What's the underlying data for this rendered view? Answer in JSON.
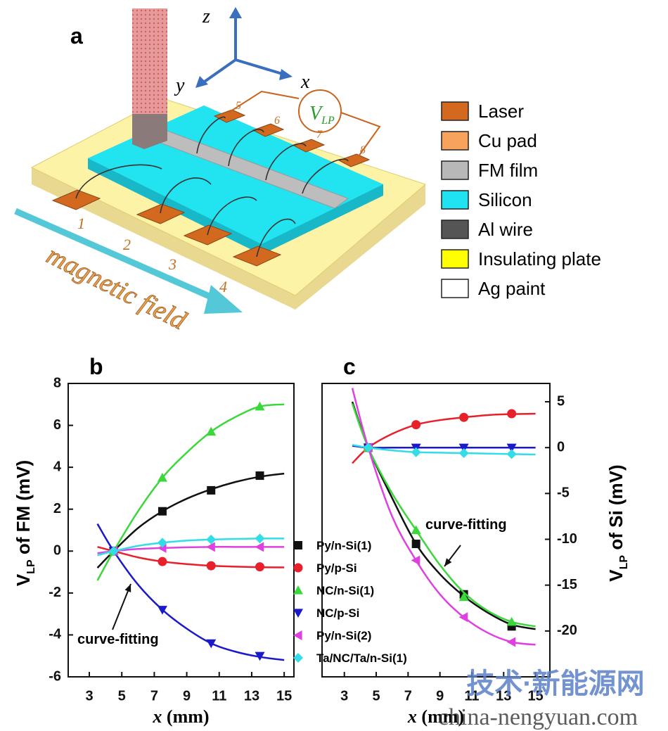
{
  "panel_a": {
    "label": "a",
    "axes": [
      "z",
      "y",
      "x"
    ],
    "pads": [
      "1",
      "2",
      "3",
      "4",
      "5",
      "6",
      "7",
      "8"
    ],
    "voltmeter": {
      "main": "V",
      "sub": "LP"
    },
    "field_label": "magnetic field",
    "legend": [
      {
        "label": "Laser",
        "color": "#d2691e"
      },
      {
        "label": "Cu pad",
        "color": "#f7a35c"
      },
      {
        "label": "FM film",
        "color": "#b8b8b8"
      },
      {
        "label": "Silicon",
        "color": "#1fe3f0"
      },
      {
        "label": "Al wire",
        "color": "#555555"
      },
      {
        "label": "Insulating plate",
        "color": "#ffff00"
      },
      {
        "label": "Ag paint",
        "color": "#ffffff"
      }
    ]
  },
  "chart_data": [
    {
      "type": "line",
      "panel": "b",
      "annotation": "curve-fitting",
      "xlabel": {
        "var": "x",
        "unit": "(mm)"
      },
      "ylabel": {
        "main": "V",
        "sub": "LP",
        "rest": " of FM (mV)"
      },
      "x": [
        4.5,
        7.5,
        10.5,
        13.5
      ],
      "fit_x": [
        3.5,
        4.5,
        6,
        7.5,
        9,
        10.5,
        12,
        13.5,
        15
      ],
      "xlim": [
        1.7,
        15.6
      ],
      "xticks": [
        3,
        5,
        7,
        9,
        11,
        13,
        15
      ],
      "ylim": [
        -6,
        8
      ],
      "yticks": [
        -6,
        -4,
        -2,
        0,
        2,
        4,
        6,
        8
      ],
      "series": [
        {
          "name": "Py/n-Si(1)",
          "color": "#111111",
          "marker": "square",
          "values": [
            0,
            1.9,
            2.9,
            3.6
          ],
          "fit": [
            -0.8,
            0,
            1.1,
            1.9,
            2.5,
            2.95,
            3.3,
            3.55,
            3.7
          ]
        },
        {
          "name": "Py/p-Si",
          "color": "#e8202a",
          "marker": "circle",
          "values": [
            0,
            -0.5,
            -0.7,
            -0.75
          ],
          "fit": [
            0.2,
            0,
            -0.3,
            -0.5,
            -0.62,
            -0.7,
            -0.74,
            -0.77,
            -0.78
          ]
        },
        {
          "name": "NC/n-Si(1)",
          "color": "#3ad83a",
          "marker": "triangle-up",
          "values": [
            0,
            3.5,
            5.7,
            6.9
          ],
          "fit": [
            -1.4,
            0,
            1.9,
            3.5,
            4.7,
            5.7,
            6.4,
            6.9,
            7.0
          ]
        },
        {
          "name": "NC/p-Si",
          "color": "#1a1acc",
          "marker": "triangle-down",
          "values": [
            0,
            -2.8,
            -4.4,
            -5.0
          ],
          "fit": [
            1.3,
            0,
            -1.6,
            -2.8,
            -3.7,
            -4.4,
            -4.8,
            -5.05,
            -5.2
          ]
        },
        {
          "name": "Py/n-Si(2)",
          "color": "#e040e0",
          "marker": "triangle-left",
          "values": [
            0,
            0.15,
            0.2,
            0.2
          ],
          "fit": [
            -0.1,
            0,
            0.1,
            0.15,
            0.18,
            0.2,
            0.2,
            0.2,
            0.2
          ]
        },
        {
          "name": "Ta/NC/Ta/n-Si(1)",
          "color": "#33dde8",
          "marker": "diamond",
          "values": [
            0,
            0.4,
            0.55,
            0.6
          ],
          "fit": [
            -0.2,
            0,
            0.25,
            0.4,
            0.5,
            0.55,
            0.58,
            0.6,
            0.6
          ]
        }
      ]
    },
    {
      "type": "line",
      "panel": "c",
      "annotation": "curve-fitting",
      "xlabel": {
        "var": "x",
        "unit": "(mm)"
      },
      "ylabel": {
        "main": "V",
        "sub": "LP",
        "rest": " of Si (mV)"
      },
      "x": [
        4.5,
        7.5,
        10.5,
        13.5
      ],
      "fit_x": [
        3.5,
        4.5,
        6,
        7.5,
        9,
        10.5,
        12,
        13.5,
        15
      ],
      "xlim": [
        1.6,
        15.9
      ],
      "xticks": [
        3,
        5,
        7,
        9,
        11,
        13,
        15
      ],
      "y2lim": [
        -25,
        7
      ],
      "y2ticks": [
        -20,
        -15,
        -10,
        -5,
        0,
        5
      ],
      "series": [
        {
          "color": "#111111",
          "marker": "square",
          "axis": "y2",
          "values": [
            0,
            -10.5,
            -16,
            -19.5
          ],
          "fit": [
            5,
            0,
            -5.5,
            -10.5,
            -13.8,
            -16.2,
            -18,
            -19.3,
            -19.8
          ]
        },
        {
          "color": "#e8202a",
          "marker": "circle",
          "axis": "y2",
          "values": [
            0,
            2.5,
            3.3,
            3.7
          ],
          "fit": [
            -1.7,
            0,
            1.5,
            2.5,
            3.0,
            3.3,
            3.55,
            3.65,
            3.7
          ]
        },
        {
          "color": "#3ad83a",
          "marker": "triangle-up",
          "axis": "y2",
          "values": [
            0,
            -9,
            -16.3,
            -19
          ],
          "fit": [
            4.8,
            0,
            -5,
            -9,
            -12.8,
            -15.8,
            -17.8,
            -19,
            -19.5
          ]
        },
        {
          "color": "#1a1acc",
          "marker": "triangle-down",
          "axis": "y2",
          "values": [
            0,
            0,
            0,
            0
          ],
          "fit": [
            0.2,
            0,
            0,
            0,
            0,
            0,
            0,
            0,
            0
          ]
        },
        {
          "color": "#e040e0",
          "marker": "triangle-left",
          "axis": "y2",
          "values": [
            0,
            -12.3,
            -18.5,
            -21.2
          ],
          "fit": [
            6.5,
            0,
            -7.5,
            -12.3,
            -16,
            -18.5,
            -20.2,
            -21.2,
            -21.5
          ]
        },
        {
          "color": "#33dde8",
          "marker": "diamond",
          "axis": "y2",
          "values": [
            0,
            -0.5,
            -0.6,
            -0.7
          ],
          "fit": [
            0.3,
            0,
            -0.3,
            -0.5,
            -0.55,
            -0.6,
            -0.65,
            -0.7,
            -0.75
          ]
        }
      ]
    }
  ],
  "watermark": [
    "技术·新能源网",
    "china-nengyuan.com"
  ]
}
